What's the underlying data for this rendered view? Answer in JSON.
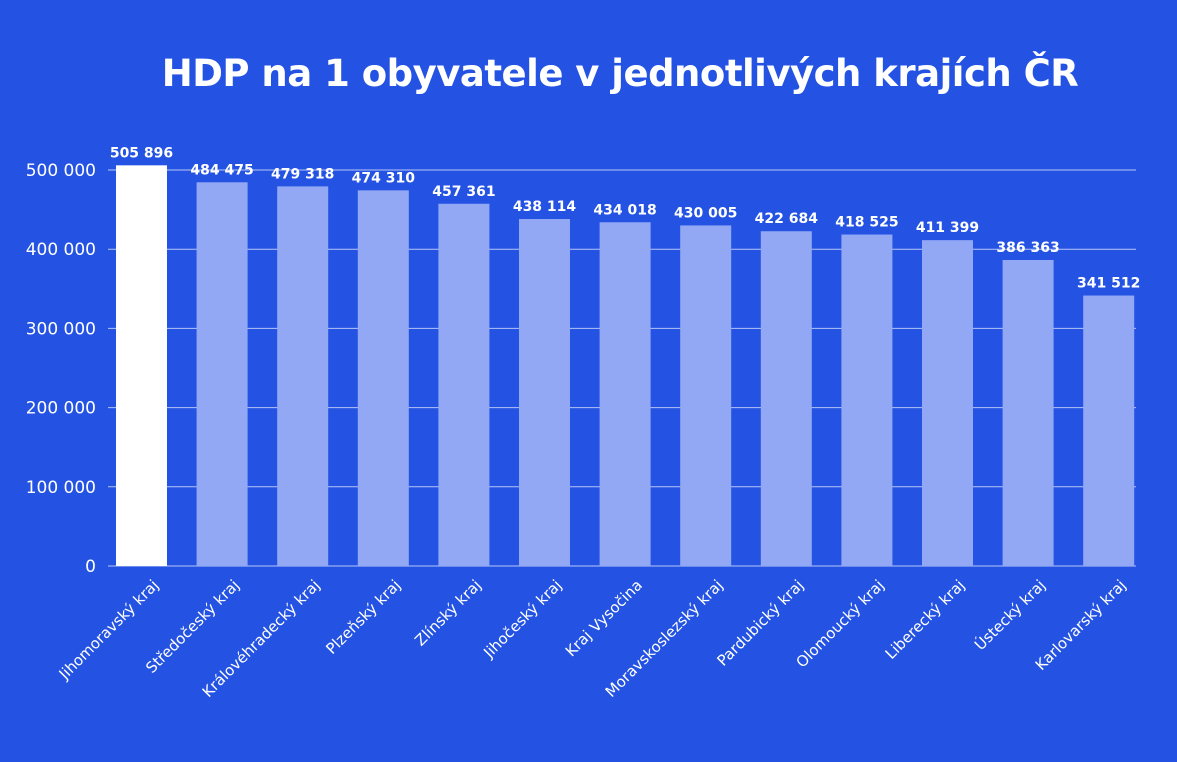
{
  "chart_data": {
    "type": "bar",
    "title": "HDP na 1 obyvatele v jednotlivých krajích ČR",
    "xlabel": "",
    "ylabel": "",
    "ylim": [
      0,
      510000
    ],
    "yticks": [
      0,
      100000,
      200000,
      300000,
      400000,
      500000
    ],
    "ytick_labels": [
      "0",
      "100 000",
      "200 000",
      "300 000",
      "400 000",
      "500 000"
    ],
    "grid": true,
    "categories": [
      "Jihomoravský kraj",
      "Středočeský kraj",
      "Královéhradecký kraj",
      "Plzeňský kraj",
      "Zlínský kraj",
      "Jihočeský kraj",
      "Kraj Vysočina",
      "Moravskoslezský kraj",
      "Pardubický kraj",
      "Olomoucký kraj",
      "Liberecký kraj",
      "Ústecký kraj",
      "Karlovarský kraj"
    ],
    "values": [
      505896,
      484475,
      479318,
      474310,
      457361,
      438114,
      434018,
      430005,
      422684,
      418525,
      411399,
      386363,
      341512
    ],
    "value_labels": [
      "505 896",
      "484 475",
      "479 318",
      "474 310",
      "457 361",
      "438 114",
      "434 018",
      "430 005",
      "422 684",
      "418 525",
      "411 399",
      "386 363",
      "341 512"
    ],
    "highlight_index": 0,
    "colors": {
      "background": "#2453e3",
      "bar": "#93a8f4",
      "highlight_bar": "#ffffff",
      "grid": "#b6c4f5",
      "text": "#ffffff"
    }
  }
}
